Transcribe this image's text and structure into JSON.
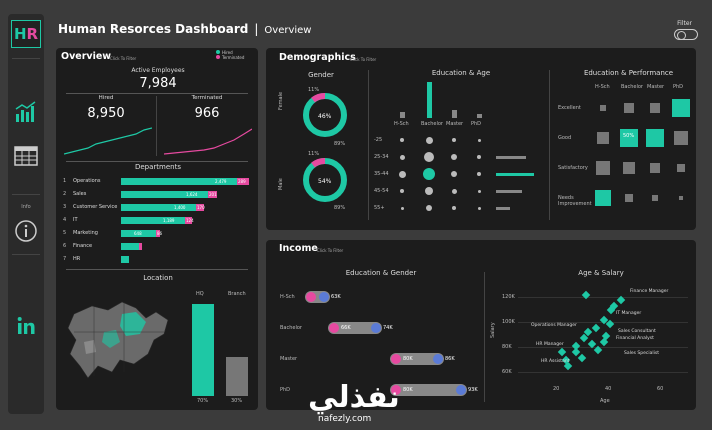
{
  "header": {
    "title": "Human Resorces Dashboard",
    "separator": "|",
    "subtitle": "Overview",
    "filter_label": "Filter"
  },
  "sidebar": {
    "logo_text": "HR",
    "info_label": "Info",
    "icons": [
      "line-chart-icon",
      "table-icon",
      "info-icon",
      "linkedin-icon"
    ]
  },
  "overview": {
    "title": "Overview",
    "hint": "Click To Filter",
    "legend": [
      "Hired",
      "Terminated"
    ],
    "active_label": "Active Employees",
    "active_value": "7,984",
    "hired_label": "Hired",
    "hired_value": "8,950",
    "terminated_label": "Terminated",
    "terminated_value": "966",
    "departments_title": "Departments",
    "departments": [
      {
        "num": "1",
        "name": "Operations",
        "hired": "2,479",
        "term": "289"
      },
      {
        "num": "2",
        "name": "Sales",
        "hired": "1,624",
        "term": "201"
      },
      {
        "num": "3",
        "name": "Customer Service",
        "hired": "1,400",
        "term": "170"
      },
      {
        "num": "4",
        "name": "IT",
        "hired": "1,189",
        "term": "124"
      },
      {
        "num": "5",
        "name": "Marketing",
        "hired": "648",
        "term": "86"
      },
      {
        "num": "6",
        "name": "Finance",
        "hired": "",
        "term": ""
      },
      {
        "num": "7",
        "name": "HR",
        "hired": "",
        "term": ""
      }
    ],
    "location_title": "Location",
    "location_cols": [
      "HQ",
      "Branch"
    ],
    "location_pcts": [
      "70%",
      "30%"
    ],
    "location_values": [
      0.7,
      0.3
    ]
  },
  "demographics": {
    "title": "Demographics",
    "hint": "Click To Filter",
    "gender_title": "Gender",
    "female_label": "Female",
    "male_label": "Male",
    "female_pct": "46%",
    "female_top": "11%",
    "female_bottom": "89%",
    "male_pct": "54%",
    "male_top": "11%",
    "male_bottom": "89%",
    "edu_age_title": "Education & Age",
    "edu_cols": [
      "H-Sch",
      "Bachelor",
      "Master",
      "PhD"
    ],
    "age_rows": [
      "-25",
      "25-34",
      "35-44",
      "45-54",
      "55+"
    ],
    "edu_perf_title": "Education & Performance",
    "perf_rows": [
      "Excellent",
      "Good",
      "Satisfactory",
      "Needs Improvement"
    ],
    "perf_highlight": "50%"
  },
  "income": {
    "title": "Income",
    "hint": "Click To Filter",
    "edu_gender_title": "Education & Gender",
    "rows": [
      {
        "label": "H-Sch",
        "v1": "",
        "v2": "63K"
      },
      {
        "label": "Bachelor",
        "v1": "66K",
        "v2": "74K"
      },
      {
        "label": "Master",
        "v1": "80K",
        "v2": "86K"
      },
      {
        "label": "PhD",
        "v1": "80K",
        "v2": "93K"
      }
    ],
    "age_salary_title": "Age & Salary",
    "ylabel": "Salary",
    "xlabel": "Age",
    "yticks": [
      "120K",
      "100K",
      "80K",
      "60K"
    ],
    "xticks": [
      "20",
      "40",
      "60"
    ],
    "points": [
      "Finance Manager",
      "IT Manager",
      "Operations Manager",
      "Sales Consultant",
      "Financial Analyst",
      "HR Manager",
      "Sales Specialist",
      "HR Assistant"
    ]
  },
  "watermark": {
    "arabic": "نفذلي",
    "site": "nafezly.com"
  },
  "colors": {
    "accent": "#1ec8a5",
    "pink": "#e64aa0",
    "panel": "#1c1c1c",
    "background": "#3b3b3b"
  }
}
